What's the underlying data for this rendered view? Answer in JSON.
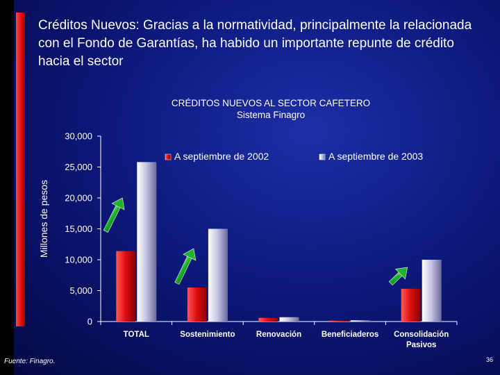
{
  "slide": {
    "headline": "Créditos Nuevos: Gracias a la normatividad, principalmente la relacionada con el Fondo de Garantías, ha habido un importante repunte de crédito hacia el sector",
    "source": "Fuente: Finagro.",
    "page_number": "36",
    "colors": {
      "background": "#0f1d86",
      "accent_stripe": "#e01010"
    }
  },
  "chart_data": {
    "type": "bar",
    "title": "CRÉDITOS NUEVOS AL SECTOR CAFETERO",
    "subtitle": "Sistema Finagro",
    "ylabel": "Millones de pesos",
    "xlabel": "",
    "ylim": [
      0,
      30000
    ],
    "yticks": [
      0,
      5000,
      10000,
      15000,
      20000,
      25000,
      30000
    ],
    "ytick_labels": [
      "0",
      "5,000",
      "10,000",
      "15,000",
      "20,000",
      "25,000",
      "30,000"
    ],
    "grid": false,
    "legend_position": "top",
    "categories": [
      "TOTAL",
      "Sostenimiento",
      "Renovación",
      "Beneficiaderos",
      "Consolidación Pasivos"
    ],
    "series": [
      {
        "name": "A septiembre de 2002",
        "values": [
          11400,
          5500,
          600,
          150,
          5300
        ],
        "color": "#e01010"
      },
      {
        "name": "A septiembre de 2003",
        "values": [
          25800,
          15000,
          700,
          200,
          10000
        ],
        "color": "#c8c8e6"
      }
    ],
    "annotations": [
      {
        "type": "arrow",
        "direction": "up",
        "color": "#22b22c",
        "category_index": 0
      },
      {
        "type": "arrow",
        "direction": "up",
        "color": "#22b22c",
        "category_index": 1
      },
      {
        "type": "arrow",
        "direction": "up",
        "color": "#22b22c",
        "category_index": 4
      }
    ]
  }
}
